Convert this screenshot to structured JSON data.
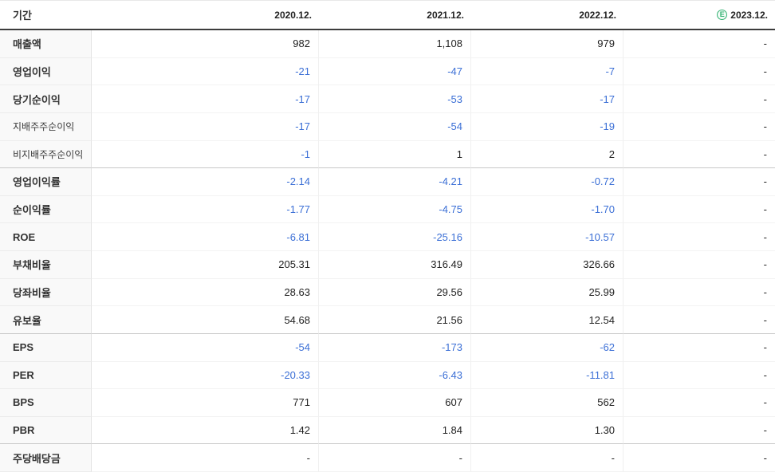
{
  "table": {
    "header": {
      "period_label": "기간",
      "estimate_icon_letter": "E",
      "columns": [
        {
          "label": "2020.12.",
          "estimate": false
        },
        {
          "label": "2021.12.",
          "estimate": false
        },
        {
          "label": "2022.12.",
          "estimate": false
        },
        {
          "label": "2023.12.",
          "estimate": true
        }
      ]
    },
    "rows": [
      {
        "label": "매출액",
        "sub": false,
        "section_end": false,
        "values": [
          {
            "v": "982",
            "neg": false
          },
          {
            "v": "1,108",
            "neg": false
          },
          {
            "v": "979",
            "neg": false
          },
          {
            "v": "-",
            "neg": false
          }
        ]
      },
      {
        "label": "영업이익",
        "sub": false,
        "section_end": false,
        "values": [
          {
            "v": "-21",
            "neg": true
          },
          {
            "v": "-47",
            "neg": true
          },
          {
            "v": "-7",
            "neg": true
          },
          {
            "v": "-",
            "neg": false
          }
        ]
      },
      {
        "label": "당기순이익",
        "sub": false,
        "section_end": false,
        "values": [
          {
            "v": "-17",
            "neg": true
          },
          {
            "v": "-53",
            "neg": true
          },
          {
            "v": "-17",
            "neg": true
          },
          {
            "v": "-",
            "neg": false
          }
        ]
      },
      {
        "label": "지배주주순이익",
        "sub": true,
        "section_end": false,
        "values": [
          {
            "v": "-17",
            "neg": true
          },
          {
            "v": "-54",
            "neg": true
          },
          {
            "v": "-19",
            "neg": true
          },
          {
            "v": "-",
            "neg": false
          }
        ]
      },
      {
        "label": "비지배주주순이익",
        "sub": true,
        "section_end": true,
        "values": [
          {
            "v": "-1",
            "neg": true
          },
          {
            "v": "1",
            "neg": false
          },
          {
            "v": "2",
            "neg": false
          },
          {
            "v": "-",
            "neg": false
          }
        ]
      },
      {
        "label": "영업이익률",
        "sub": false,
        "section_end": false,
        "values": [
          {
            "v": "-2.14",
            "neg": true
          },
          {
            "v": "-4.21",
            "neg": true
          },
          {
            "v": "-0.72",
            "neg": true
          },
          {
            "v": "-",
            "neg": false
          }
        ]
      },
      {
        "label": "순이익률",
        "sub": false,
        "section_end": false,
        "values": [
          {
            "v": "-1.77",
            "neg": true
          },
          {
            "v": "-4.75",
            "neg": true
          },
          {
            "v": "-1.70",
            "neg": true
          },
          {
            "v": "-",
            "neg": false
          }
        ]
      },
      {
        "label": "ROE",
        "sub": false,
        "section_end": false,
        "values": [
          {
            "v": "-6.81",
            "neg": true
          },
          {
            "v": "-25.16",
            "neg": true
          },
          {
            "v": "-10.57",
            "neg": true
          },
          {
            "v": "-",
            "neg": false
          }
        ]
      },
      {
        "label": "부채비율",
        "sub": false,
        "section_end": false,
        "values": [
          {
            "v": "205.31",
            "neg": false
          },
          {
            "v": "316.49",
            "neg": false
          },
          {
            "v": "326.66",
            "neg": false
          },
          {
            "v": "-",
            "neg": false
          }
        ]
      },
      {
        "label": "당좌비율",
        "sub": false,
        "section_end": false,
        "values": [
          {
            "v": "28.63",
            "neg": false
          },
          {
            "v": "29.56",
            "neg": false
          },
          {
            "v": "25.99",
            "neg": false
          },
          {
            "v": "-",
            "neg": false
          }
        ]
      },
      {
        "label": "유보율",
        "sub": false,
        "section_end": true,
        "values": [
          {
            "v": "54.68",
            "neg": false
          },
          {
            "v": "21.56",
            "neg": false
          },
          {
            "v": "12.54",
            "neg": false
          },
          {
            "v": "-",
            "neg": false
          }
        ]
      },
      {
        "label": "EPS",
        "sub": false,
        "section_end": false,
        "values": [
          {
            "v": "-54",
            "neg": true
          },
          {
            "v": "-173",
            "neg": true
          },
          {
            "v": "-62",
            "neg": true
          },
          {
            "v": "-",
            "neg": false
          }
        ]
      },
      {
        "label": "PER",
        "sub": false,
        "section_end": false,
        "values": [
          {
            "v": "-20.33",
            "neg": true
          },
          {
            "v": "-6.43",
            "neg": true
          },
          {
            "v": "-11.81",
            "neg": true
          },
          {
            "v": "-",
            "neg": false
          }
        ]
      },
      {
        "label": "BPS",
        "sub": false,
        "section_end": false,
        "values": [
          {
            "v": "771",
            "neg": false
          },
          {
            "v": "607",
            "neg": false
          },
          {
            "v": "562",
            "neg": false
          },
          {
            "v": "-",
            "neg": false
          }
        ]
      },
      {
        "label": "PBR",
        "sub": false,
        "section_end": true,
        "values": [
          {
            "v": "1.42",
            "neg": false
          },
          {
            "v": "1.84",
            "neg": false
          },
          {
            "v": "1.30",
            "neg": false
          },
          {
            "v": "-",
            "neg": false
          }
        ]
      },
      {
        "label": "주당배당금",
        "sub": false,
        "section_end": false,
        "values": [
          {
            "v": "-",
            "neg": false
          },
          {
            "v": "-",
            "neg": false
          },
          {
            "v": "-",
            "neg": false
          },
          {
            "v": "-",
            "neg": false
          }
        ]
      }
    ],
    "colors": {
      "negative_value": "#3b6fd6",
      "default_value": "#222222",
      "estimate_green": "#35b374",
      "header_border": "#3c3c3c",
      "label_column_bg": "#f9f9f9"
    }
  }
}
